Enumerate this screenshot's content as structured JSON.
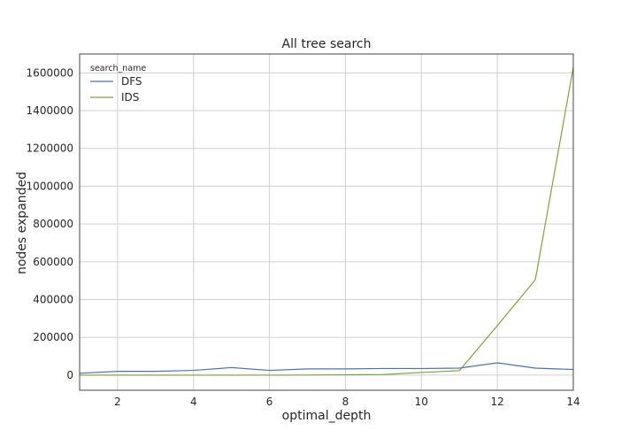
{
  "chart_data": {
    "type": "line",
    "title": "All tree search",
    "xlabel": "optimal_depth",
    "ylabel": "nodes expanded",
    "xlim": [
      1,
      14
    ],
    "ylim": [
      -80000,
      1700000
    ],
    "xticks": [
      2,
      4,
      6,
      8,
      10,
      12,
      14
    ],
    "yticks": [
      0,
      200000,
      400000,
      600000,
      800000,
      1000000,
      1200000,
      1400000,
      1600000
    ],
    "xtick_labels": [
      "2",
      "4",
      "6",
      "8",
      "10",
      "12",
      "14"
    ],
    "ytick_labels": [
      "0",
      "200000",
      "400000",
      "600000",
      "800000",
      "1000000",
      "1200000",
      "1400000",
      "1600000"
    ],
    "grid": true,
    "legend": {
      "title": "search_name",
      "position": "top-left"
    },
    "x": [
      1,
      2,
      3,
      4,
      5,
      6,
      7,
      8,
      9,
      10,
      11,
      12,
      13,
      14
    ],
    "series": [
      {
        "name": "DFS",
        "color": "#4c72b0",
        "values": [
          10000,
          20000,
          20000,
          25000,
          40000,
          25000,
          33000,
          33000,
          35000,
          35000,
          37000,
          65000,
          37000,
          30000
        ]
      },
      {
        "name": "IDS",
        "color": "#7fa23d",
        "values": [
          0,
          0,
          0,
          0,
          0,
          0,
          500,
          2000,
          3000,
          14000,
          24000,
          262000,
          505000,
          1630000
        ]
      }
    ]
  }
}
